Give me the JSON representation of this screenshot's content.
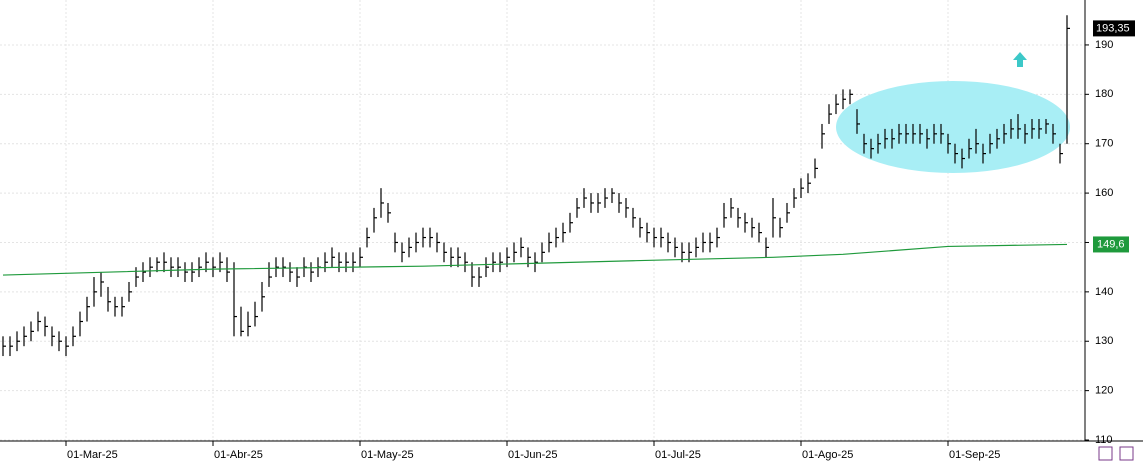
{
  "chart_data": {
    "type": "hlc",
    "categories": [
      null,
      null,
      null,
      null,
      null,
      null,
      null,
      null,
      null,
      "01-Mar-25",
      null,
      null,
      null,
      null,
      null,
      null,
      null,
      null,
      null,
      null,
      null,
      null,
      null,
      null,
      null,
      null,
      null,
      null,
      null,
      null,
      "01-Abr-25",
      null,
      null,
      null,
      null,
      null,
      null,
      null,
      null,
      null,
      null,
      null,
      null,
      null,
      null,
      null,
      null,
      null,
      null,
      null,
      null,
      "01-May-25",
      null,
      null,
      null,
      null,
      null,
      null,
      null,
      null,
      null,
      null,
      null,
      null,
      null,
      null,
      null,
      null,
      null,
      null,
      null,
      null,
      "01-Jun-25",
      null,
      null,
      null,
      null,
      null,
      null,
      null,
      null,
      null,
      null,
      null,
      null,
      null,
      null,
      null,
      null,
      null,
      null,
      null,
      null,
      "01-Jul-25",
      null,
      null,
      null,
      null,
      null,
      null,
      null,
      null,
      null,
      null,
      null,
      null,
      null,
      null,
      null,
      null,
      null,
      null,
      null,
      null,
      "01-Ago-25",
      null,
      null,
      null,
      null,
      null,
      null,
      null,
      null,
      null,
      null,
      null,
      null,
      null,
      null,
      null,
      null,
      null,
      null,
      null,
      null,
      "01-Sep-25",
      null,
      null,
      null,
      null,
      null,
      null,
      null,
      null,
      null,
      null,
      null,
      null,
      null,
      null,
      null,
      null,
      null
    ],
    "high": [
      131,
      131,
      132,
      133,
      134,
      136,
      135,
      133,
      132,
      131,
      133,
      136,
      139,
      143,
      144,
      141,
      139,
      139,
      142,
      145,
      146,
      147,
      147,
      148,
      147,
      147,
      146,
      146,
      147,
      148,
      147,
      148,
      147,
      146,
      137,
      136,
      138,
      142,
      146,
      147,
      147,
      146,
      145,
      147,
      146,
      147,
      148,
      149,
      148,
      148,
      148,
      149,
      153,
      157,
      161,
      158,
      152,
      150,
      151,
      152,
      153,
      153,
      152,
      150,
      149,
      149,
      148,
      146,
      145,
      147,
      148,
      148,
      149,
      150,
      151,
      149,
      148,
      150,
      152,
      153,
      154,
      156,
      159,
      161,
      160,
      160,
      161,
      161,
      160,
      159,
      157,
      155,
      154,
      153,
      153,
      152,
      151,
      150,
      150,
      151,
      152,
      152,
      153,
      158,
      159,
      157,
      156,
      155,
      154,
      151,
      159,
      155,
      158,
      161,
      163,
      164,
      167,
      174,
      178,
      180,
      181,
      181,
      177,
      172,
      171,
      172,
      173,
      173,
      174,
      174,
      174,
      174,
      173,
      174,
      174,
      172,
      170,
      169,
      171,
      173,
      170,
      172,
      173,
      174,
      175,
      176,
      174,
      175,
      175,
      175,
      174,
      170,
      196
    ],
    "low": [
      127,
      127,
      128,
      129,
      130,
      132,
      131,
      129,
      128,
      127,
      129,
      131,
      134,
      137,
      139,
      136,
      135,
      135,
      138,
      141,
      142,
      143,
      144,
      144,
      143,
      143,
      142,
      142,
      143,
      144,
      143,
      144,
      142,
      131,
      131,
      131,
      133,
      136,
      141,
      143,
      143,
      142,
      141,
      143,
      142,
      143,
      144,
      145,
      144,
      144,
      144,
      145,
      149,
      152,
      155,
      154,
      148,
      146,
      147,
      148,
      149,
      149,
      148,
      146,
      145,
      145,
      144,
      141,
      141,
      143,
      144,
      144,
      145,
      146,
      147,
      145,
      144,
      146,
      148,
      149,
      150,
      152,
      155,
      157,
      156,
      156,
      157,
      158,
      156,
      155,
      153,
      151,
      150,
      149,
      149,
      148,
      147,
      146,
      146,
      147,
      148,
      148,
      149,
      153,
      155,
      153,
      152,
      151,
      150,
      147,
      151,
      151,
      154,
      157,
      159,
      160,
      163,
      169,
      174,
      176,
      177,
      178,
      172,
      168,
      167,
      168,
      169,
      169,
      170,
      170,
      170,
      170,
      169,
      170,
      170,
      168,
      166,
      165,
      167,
      168,
      166,
      168,
      169,
      170,
      171,
      171,
      170,
      171,
      171,
      172,
      170,
      166,
      170
    ],
    "close": [
      129,
      129,
      130,
      131,
      132,
      134,
      133,
      131,
      130,
      129,
      131,
      134,
      137,
      140,
      142,
      138,
      137,
      137,
      140,
      143,
      144,
      145,
      146,
      146,
      145,
      145,
      144,
      144,
      145,
      146,
      145,
      146,
      144,
      135,
      132,
      133,
      135,
      139,
      143,
      145,
      145,
      144,
      143,
      145,
      144,
      145,
      146,
      147,
      146,
      146,
      146,
      147,
      151,
      155,
      158,
      156,
      150,
      148,
      149,
      150,
      151,
      151,
      150,
      148,
      147,
      147,
      146,
      143,
      143,
      145,
      146,
      146,
      147,
      148,
      149,
      147,
      146,
      148,
      150,
      151,
      152,
      154,
      157,
      159,
      158,
      158,
      159,
      160,
      158,
      157,
      155,
      153,
      152,
      151,
      151,
      150,
      149,
      148,
      148,
      149,
      150,
      150,
      151,
      155,
      157,
      155,
      154,
      153,
      152,
      149,
      155,
      153,
      156,
      159,
      161,
      162,
      165,
      172,
      176,
      178,
      179,
      180,
      174,
      170,
      169,
      170,
      171,
      171,
      172,
      172,
      172,
      172,
      171,
      172,
      172,
      170,
      168,
      167,
      169,
      170,
      168,
      170,
      171,
      172,
      173,
      173,
      172,
      173,
      173,
      174,
      172,
      168,
      193.35
    ],
    "last_label": {
      "value": 193.35,
      "label": "193,35"
    },
    "ma": {
      "color": "#1f9a3c",
      "x": [
        0,
        30,
        60,
        90,
        110,
        120,
        135,
        152
      ],
      "values": [
        143.4,
        144.6,
        145.2,
        146.3,
        147.0,
        147.6,
        149.2,
        149.6
      ],
      "label": {
        "value": 149.6,
        "label": "149,6"
      }
    },
    "color": "#000000",
    "ylim": [
      109.8,
      199.1
    ],
    "yticks": [
      110,
      120,
      130,
      140,
      150,
      160,
      170,
      180,
      190
    ],
    "grid": true
  }
}
